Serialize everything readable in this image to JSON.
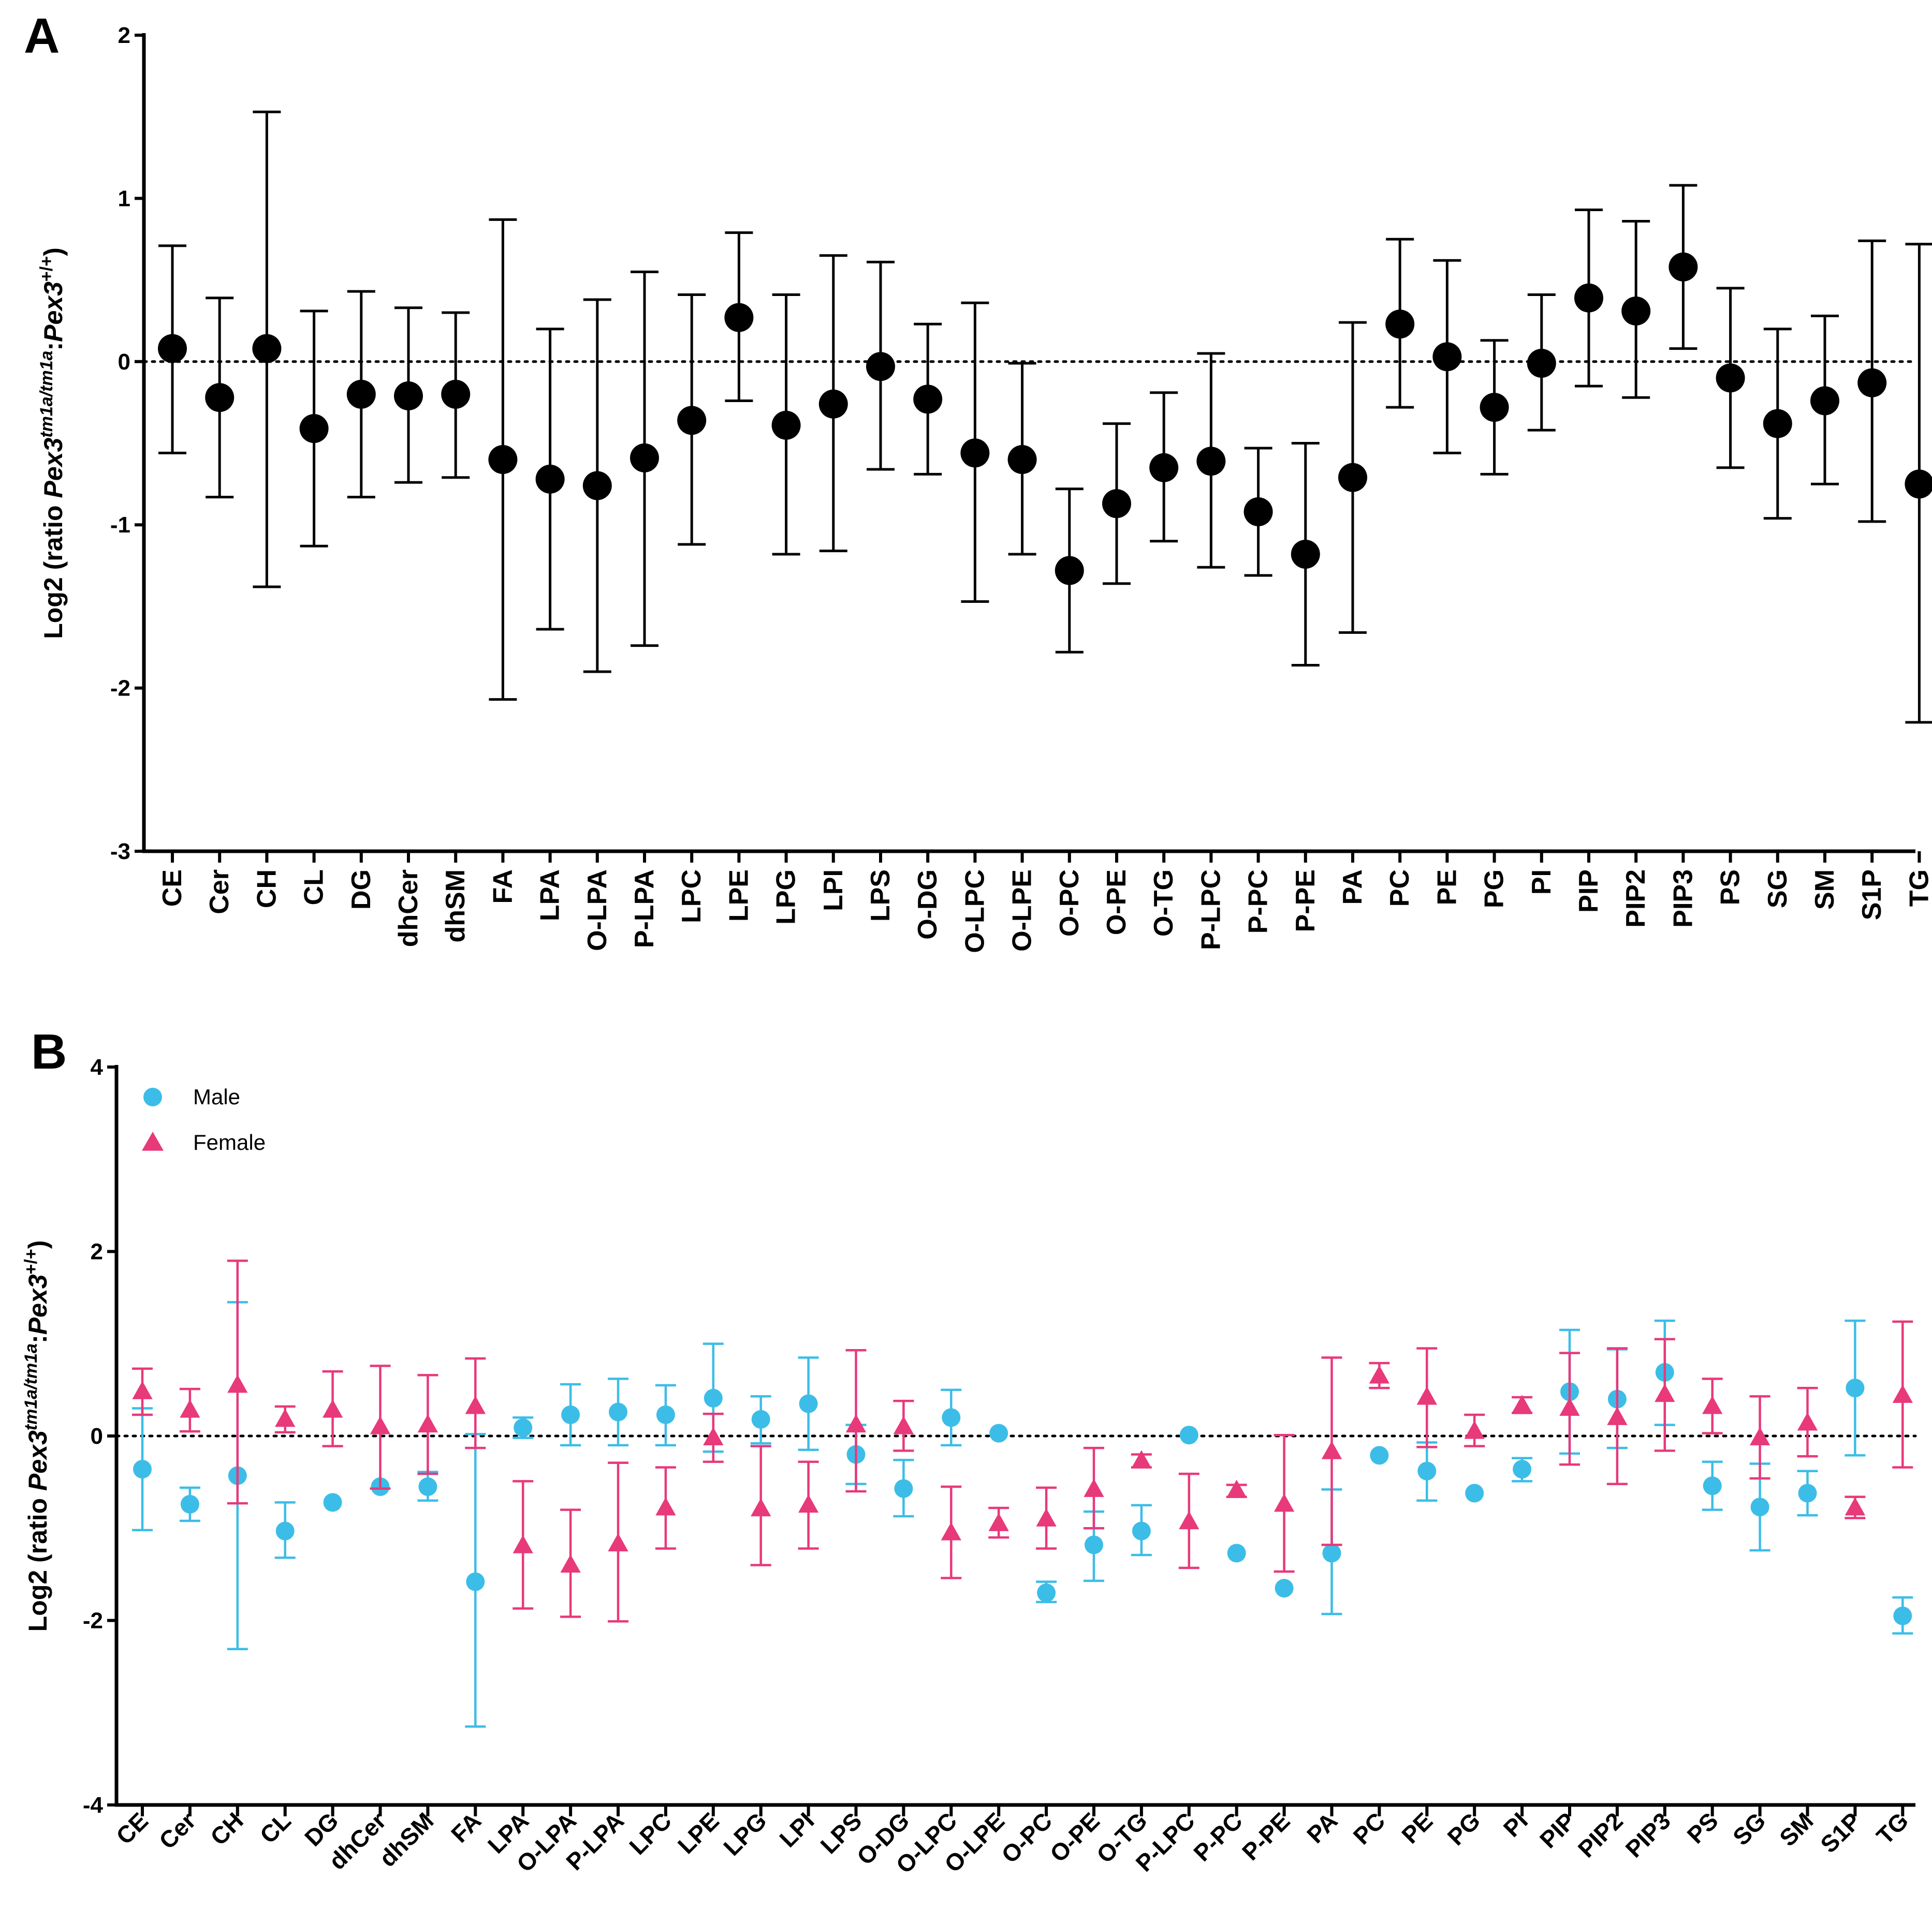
{
  "chart_data": [
    {
      "panel": "A",
      "type": "scatter",
      "ylabel_parts": [
        "Log2 (ratio ",
        "Pex3",
        "tm1a/tm1a",
        ":",
        "Pex3",
        "+/+",
        ")"
      ],
      "ylim": [
        -3,
        2
      ],
      "yticks": [
        2,
        1,
        0,
        -1,
        -2,
        -3
      ],
      "reference_line": 0,
      "categories": [
        "CE",
        "Cer",
        "CH",
        "CL",
        "DG",
        "dhCer",
        "dhSM",
        "FA",
        "LPA",
        "O-LPA",
        "P-LPA",
        "LPC",
        "LPE",
        "LPG",
        "LPI",
        "LPS",
        "O-DG",
        "O-LPC",
        "O-LPE",
        "O-PC",
        "O-PE",
        "O-TG",
        "P-LPC",
        "P-PC",
        "P-PE",
        "PA",
        "PC",
        "PE",
        "PG",
        "PI",
        "PIP",
        "PIP2",
        "PIP3",
        "PS",
        "SG",
        "SM",
        "S1P",
        "TG"
      ],
      "series": [
        {
          "name": "All",
          "color": "#000000",
          "marker": "circle",
          "values": [
            0.08,
            -0.22,
            0.08,
            -0.41,
            -0.2,
            -0.21,
            -0.2,
            -0.6,
            -0.72,
            -0.76,
            -0.59,
            -0.36,
            0.27,
            -0.39,
            -0.26,
            -0.03,
            -0.23,
            -0.56,
            -0.6,
            -1.28,
            -0.87,
            -0.65,
            -0.61,
            -0.92,
            -1.18,
            -0.71,
            0.23,
            0.03,
            -0.28,
            -0.01,
            0.39,
            0.31,
            0.58,
            -0.1,
            -0.38,
            -0.24,
            -0.13,
            -0.75
          ],
          "upper": [
            0.71,
            0.39,
            1.53,
            0.31,
            0.43,
            0.33,
            0.3,
            0.87,
            0.2,
            0.38,
            0.55,
            0.41,
            0.79,
            0.41,
            0.65,
            0.61,
            0.23,
            0.36,
            -0.01,
            -0.78,
            -0.38,
            -0.19,
            0.05,
            -0.53,
            -0.5,
            0.24,
            0.75,
            0.62,
            0.13,
            0.41,
            0.93,
            0.86,
            1.08,
            0.45,
            0.2,
            0.28,
            0.74,
            0.72
          ],
          "lower": [
            -0.56,
            -0.83,
            -1.38,
            -1.13,
            -0.83,
            -0.74,
            -0.71,
            -2.07,
            -1.64,
            -1.9,
            -1.74,
            -1.12,
            -0.24,
            -1.18,
            -1.16,
            -0.66,
            -0.69,
            -1.47,
            -1.18,
            -1.78,
            -1.36,
            -1.1,
            -1.26,
            -1.31,
            -1.86,
            -1.66,
            -0.28,
            -0.56,
            -0.69,
            -0.42,
            -0.15,
            -0.22,
            0.08,
            -0.65,
            -0.96,
            -0.75,
            -0.98,
            -2.21
          ]
        }
      ]
    },
    {
      "panel": "B",
      "type": "scatter",
      "ylabel_parts": [
        "Log2 (ratio ",
        "Pex3",
        "tm1a/tm1a",
        ":",
        "Pex3",
        "+/+",
        ")"
      ],
      "ylim": [
        -4,
        4
      ],
      "yticks": [
        4,
        2,
        0,
        -2,
        -4
      ],
      "reference_line": 0,
      "legend_position": "top-left",
      "categories": [
        "CE",
        "Cer",
        "CH",
        "CL",
        "DG",
        "dhCer",
        "dhSM",
        "FA",
        "LPA",
        "O-LPA",
        "P-LPA",
        "LPC",
        "LPE",
        "LPG",
        "LPI",
        "LPS",
        "O-DG",
        "O-LPC",
        "O-LPE",
        "O-PC",
        "O-PE",
        "O-TG",
        "P-LPC",
        "P-PC",
        "P-PE",
        "PA",
        "PC",
        "PE",
        "PG",
        "PI",
        "PIP",
        "PIP2",
        "PIP3",
        "PS",
        "SG",
        "SM",
        "S1P",
        "TG"
      ],
      "series": [
        {
          "name": "Male",
          "color": "#3CBDE8",
          "marker": "circle",
          "values": [
            -0.36,
            -0.74,
            -0.43,
            -1.03,
            -0.72,
            -0.55,
            -0.55,
            -1.58,
            0.09,
            0.23,
            0.26,
            0.23,
            0.41,
            0.18,
            0.35,
            -0.2,
            -0.57,
            0.2,
            0.03,
            -1.7,
            -1.18,
            -1.03,
            0.01,
            -1.27,
            -1.65,
            -1.27,
            -0.21,
            -0.38,
            -0.62,
            -0.36,
            0.48,
            0.4,
            0.69,
            -0.54,
            -0.77,
            -0.62,
            0.52,
            -1.95
          ],
          "upper": [
            0.3,
            -0.56,
            1.45,
            -0.72,
            null,
            null,
            -0.39,
            0.02,
            0.2,
            0.56,
            0.62,
            0.55,
            1.0,
            0.43,
            0.85,
            0.12,
            -0.26,
            0.5,
            null,
            -1.58,
            -0.82,
            -0.75,
            null,
            null,
            null,
            -0.58,
            null,
            -0.07,
            null,
            -0.24,
            1.15,
            0.94,
            1.25,
            -0.28,
            -0.3,
            -0.38,
            1.25,
            -1.75
          ],
          "lower": [
            -1.02,
            -0.92,
            -2.31,
            -1.32,
            null,
            null,
            -0.7,
            -3.15,
            -0.02,
            -0.1,
            -0.1,
            -0.1,
            -0.17,
            -0.08,
            -0.15,
            -0.52,
            -0.87,
            -0.1,
            null,
            -1.8,
            -1.57,
            -1.29,
            null,
            null,
            null,
            -1.93,
            null,
            -0.7,
            null,
            -0.49,
            -0.19,
            -0.13,
            0.12,
            -0.8,
            -1.24,
            -0.86,
            -0.21,
            -2.14
          ]
        },
        {
          "name": "Female",
          "color": "#E8397A",
          "marker": "triangle",
          "values": [
            0.48,
            0.28,
            0.55,
            0.18,
            0.28,
            0.1,
            0.12,
            0.32,
            -1.19,
            -1.4,
            -1.17,
            -0.78,
            -0.02,
            -0.79,
            -0.75,
            0.12,
            0.1,
            -1.05,
            -0.95,
            -0.9,
            -0.58,
            -0.27,
            -0.93,
            -0.59,
            -0.74,
            -0.17,
            0.65,
            0.42,
            0.05,
            0.33,
            0.3,
            0.2,
            0.45,
            0.32,
            -0.02,
            0.14,
            -0.78,
            0.44
          ],
          "upper": [
            0.73,
            0.51,
            1.9,
            0.32,
            0.7,
            0.76,
            0.66,
            0.84,
            -0.49,
            -0.8,
            -0.29,
            -0.34,
            0.24,
            -0.11,
            -0.28,
            0.93,
            0.38,
            -0.55,
            -0.78,
            -0.56,
            -0.13,
            -0.2,
            -0.41,
            -0.53,
            0.01,
            0.85,
            0.79,
            0.95,
            0.23,
            0.42,
            0.9,
            0.95,
            1.05,
            0.62,
            0.43,
            0.52,
            -0.66,
            1.24
          ],
          "lower": [
            0.23,
            0.05,
            -0.73,
            0.04,
            -0.11,
            -0.57,
            -0.41,
            -0.13,
            -1.87,
            -1.96,
            -2.01,
            -1.22,
            -0.28,
            -1.4,
            -1.22,
            -0.6,
            -0.16,
            -1.54,
            -1.1,
            -1.22,
            -1.0,
            -0.34,
            -1.43,
            -0.66,
            -1.47,
            -1.18,
            0.52,
            -0.12,
            -0.11,
            0.25,
            -0.31,
            -0.52,
            -0.16,
            0.03,
            -0.46,
            -0.22,
            -0.89,
            -0.34
          ]
        }
      ]
    }
  ]
}
